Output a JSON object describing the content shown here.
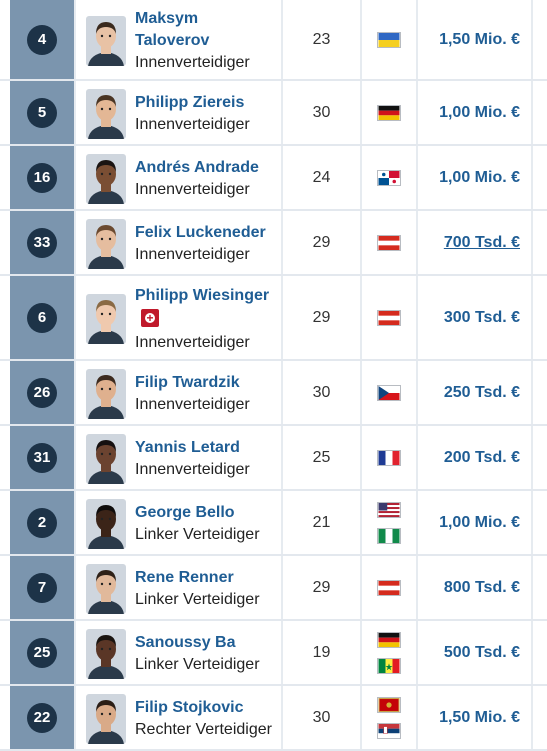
{
  "players": [
    {
      "number": "4",
      "name": "Maksym Taloverov",
      "name_lines": [
        "Maksym",
        "Taloverov"
      ],
      "position": "Innenverteidiger",
      "age": "23",
      "flags": [
        "ukraine"
      ],
      "value": "1,50 Mio. €",
      "injured": false,
      "underline": false
    },
    {
      "number": "5",
      "name": "Philipp Ziereis",
      "name_lines": [
        "Philipp Ziereis"
      ],
      "position": "Innenverteidiger",
      "age": "30",
      "flags": [
        "germany"
      ],
      "value": "1,00 Mio. €",
      "injured": false,
      "underline": false
    },
    {
      "number": "16",
      "name": "Andrés Andrade",
      "name_lines": [
        "Andrés Andrade"
      ],
      "position": "Innenverteidiger",
      "age": "24",
      "flags": [
        "panama"
      ],
      "value": "1,00 Mio. €",
      "injured": false,
      "underline": false
    },
    {
      "number": "33",
      "name": "Felix Luckeneder",
      "name_lines": [
        "Felix Luckeneder"
      ],
      "position": "Innenverteidiger",
      "age": "29",
      "flags": [
        "austria"
      ],
      "value": "700 Tsd. €",
      "injured": false,
      "underline": true
    },
    {
      "number": "6",
      "name": "Philipp Wiesinger",
      "name_lines": [
        "Philipp Wiesinger"
      ],
      "position": "Innenverteidiger",
      "age": "29",
      "flags": [
        "austria"
      ],
      "value": "300 Tsd. €",
      "injured": true,
      "underline": false
    },
    {
      "number": "26",
      "name": "Filip Twardzik",
      "name_lines": [
        "Filip Twardzik"
      ],
      "position": "Innenverteidiger",
      "age": "30",
      "flags": [
        "czechia"
      ],
      "value": "250 Tsd. €",
      "injured": false,
      "underline": false
    },
    {
      "number": "31",
      "name": "Yannis Letard",
      "name_lines": [
        "Yannis Letard"
      ],
      "position": "Innenverteidiger",
      "age": "25",
      "flags": [
        "france"
      ],
      "value": "200 Tsd. €",
      "injured": false,
      "underline": false
    },
    {
      "number": "2",
      "name": "George Bello",
      "name_lines": [
        "George Bello"
      ],
      "position": "Linker Verteidiger",
      "age": "21",
      "flags": [
        "usa",
        "nigeria"
      ],
      "value": "1,00 Mio. €",
      "injured": false,
      "underline": false
    },
    {
      "number": "7",
      "name": "Rene Renner",
      "name_lines": [
        "Rene Renner"
      ],
      "position": "Linker Verteidiger",
      "age": "29",
      "flags": [
        "austria"
      ],
      "value": "800 Tsd. €",
      "injured": false,
      "underline": false
    },
    {
      "number": "25",
      "name": "Sanoussy Ba",
      "name_lines": [
        "Sanoussy Ba"
      ],
      "position": "Linker Verteidiger",
      "age": "19",
      "flags": [
        "germany",
        "senegal"
      ],
      "value": "500 Tsd. €",
      "injured": false,
      "underline": false
    },
    {
      "number": "22",
      "name": "Filip Stojkovic",
      "name_lines": [
        "Filip Stojkovic"
      ],
      "position": "Rechter Verteidiger",
      "age": "30",
      "flags": [
        "montenegro",
        "serbia"
      ],
      "value": "1,50 Mio. €",
      "injured": false,
      "underline": false
    }
  ],
  "colors": {
    "accent_blue": "#1f5d94",
    "number_column": "#7b95ae",
    "number_badge": "#1d3348",
    "injury_red": "#c0192b"
  },
  "icons": {
    "injury": "red-cross-injury-icon"
  }
}
